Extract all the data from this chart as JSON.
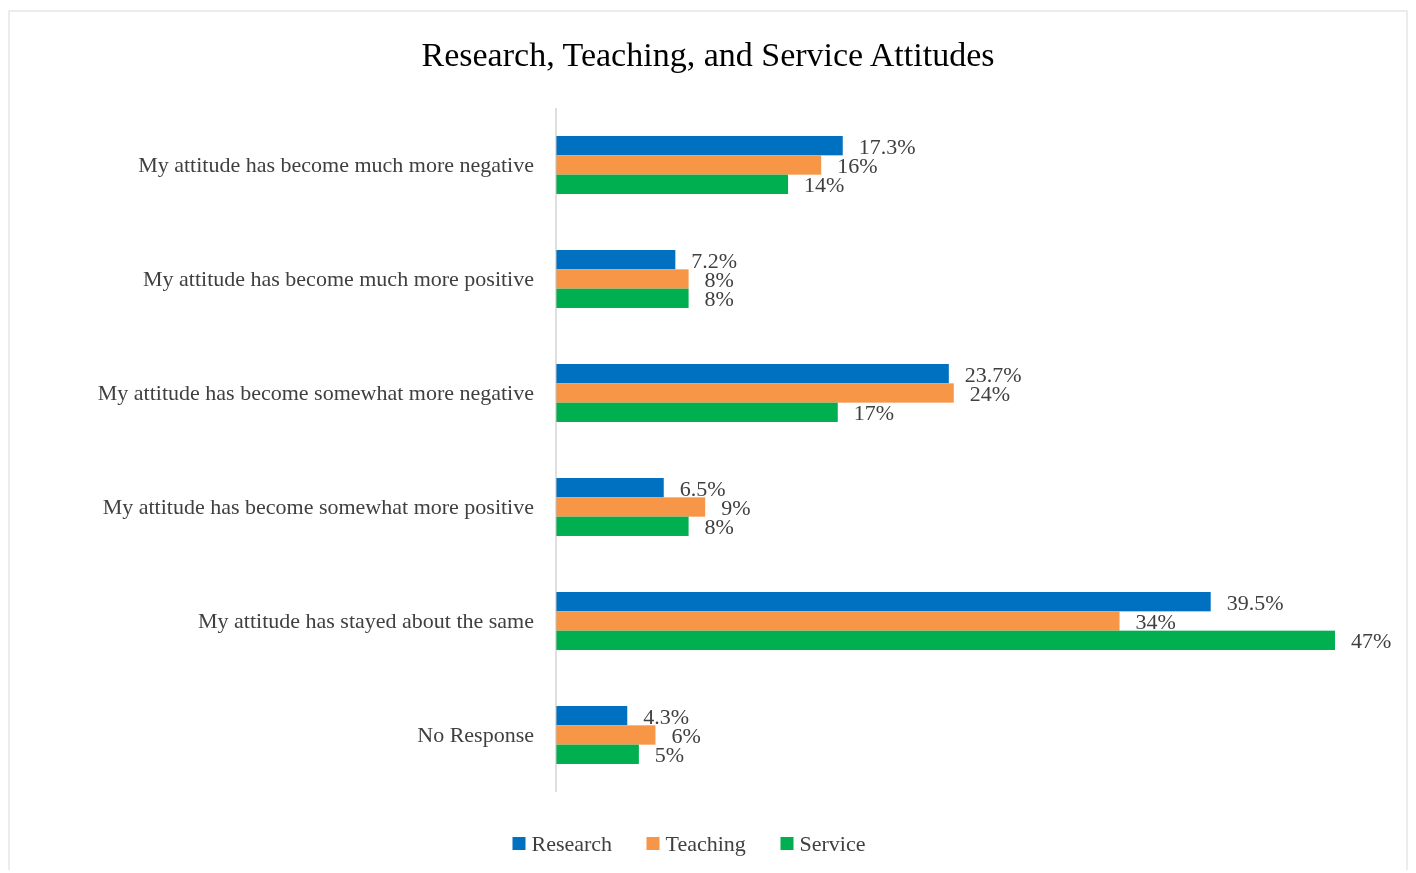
{
  "chart_data": {
    "type": "bar",
    "orientation": "horizontal",
    "title": "Research, Teaching, and Service Attitudes",
    "categories": [
      "My attitude has become much more negative",
      "My attitude has become much more positive",
      "My attitude has become somewhat more negative",
      "My attitude has become somewhat more positive",
      "My attitude has stayed about the same",
      "No Response"
    ],
    "series": [
      {
        "name": "Research",
        "color": "#0070c0",
        "values": [
          17.3,
          7.2,
          23.7,
          6.5,
          39.5,
          4.3
        ],
        "value_labels": [
          "17.3%",
          "7.2%",
          "23.7%",
          "6.5%",
          "39.5%",
          "4.3%"
        ]
      },
      {
        "name": "Teaching",
        "color": "#f79646",
        "values": [
          16,
          8,
          24,
          9,
          34,
          6
        ],
        "value_labels": [
          "16%",
          "8%",
          "24%",
          "9%",
          "34%",
          "6%"
        ]
      },
      {
        "name": "Service",
        "color": "#00b050",
        "values": [
          14,
          8,
          17,
          8,
          47,
          5
        ],
        "value_labels": [
          "14%",
          "8%",
          "17%",
          "8%",
          "47%",
          "5%"
        ]
      }
    ],
    "legend": "bottom",
    "grid": false
  }
}
